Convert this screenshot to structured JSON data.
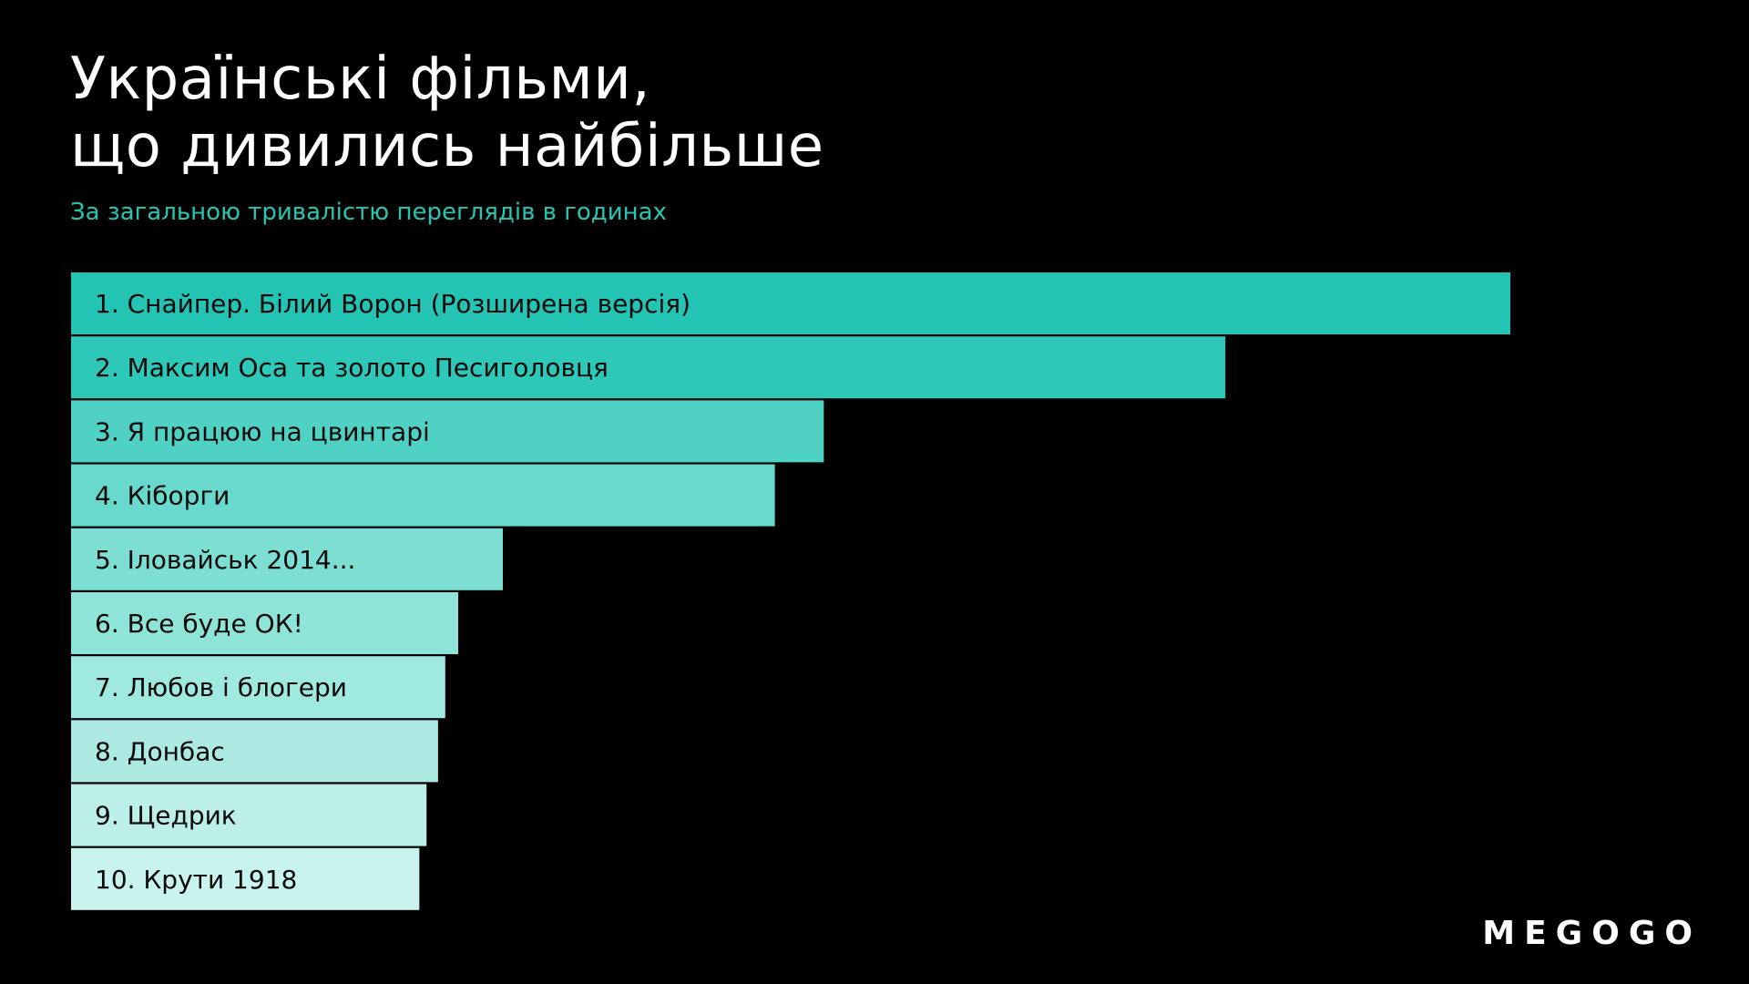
{
  "title_line1": "Українські фільми,",
  "title_line2": "що дивились найбільше",
  "subtitle": "За загальною тривалістю переглядів в годинах",
  "brand": "MEGOGO",
  "colors": [
    "#23c4b3",
    "#2dc8b7",
    "#4fd2c3",
    "#68d9cc",
    "#7ddfd3",
    "#8fe4d9",
    "#a0e9e0",
    "#ace9e2",
    "#bcefe9",
    "#c9f3ee"
  ],
  "chart_data": {
    "type": "bar",
    "orientation": "horizontal",
    "title": "Українські фільми, що дивились найбільше",
    "subtitle": "За загальною тривалістю переглядів в годинах",
    "categories": [
      "1. Снайпер. Білий Ворон (Розширена версія)",
      "2. Максим Оса та золото Песиголовця",
      "3. Я працюю на цвинтарі",
      "4. Кіборги",
      "5. Іловайськ 2014...",
      "6. Все буде ОК!",
      "7. Любов і блогери",
      "8. Донбас",
      "9. Щедрик",
      "10. Крути 1918"
    ],
    "values": [
      100,
      80.2,
      52.3,
      48.9,
      30.0,
      26.9,
      26.0,
      25.5,
      24.7,
      24.2
    ],
    "grid": false,
    "legend": "none"
  }
}
